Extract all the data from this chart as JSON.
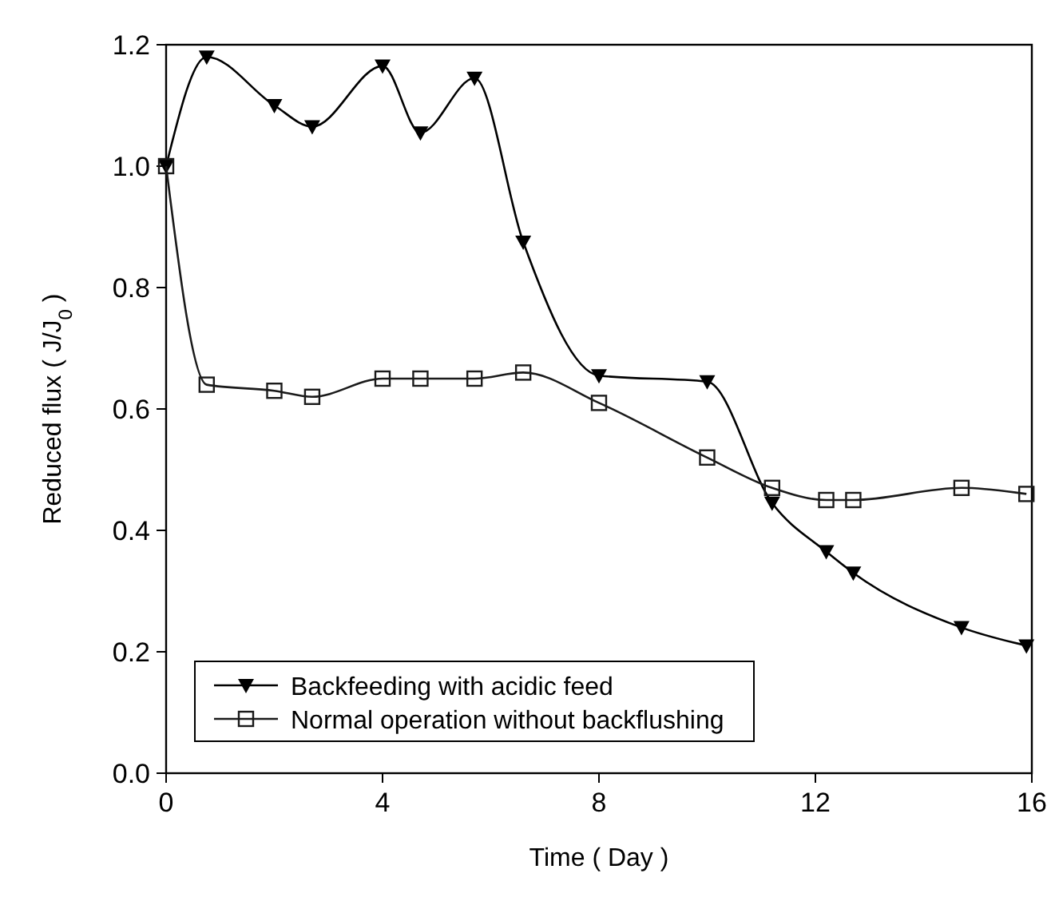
{
  "chart_data": {
    "type": "line",
    "xlabel": "Time ( Day )",
    "ylabel": "Reduced flux ( J/J$_{0}$ )",
    "xlim": [
      0,
      16
    ],
    "xticks": [
      0,
      4,
      8,
      12,
      16
    ],
    "ylim": [
      0,
      1.2
    ],
    "yticks": [
      {
        "value": 0,
        "label": "0.0"
      },
      {
        "value": 0.2,
        "label": "0.2"
      },
      {
        "value": 0.4,
        "label": "0.4"
      },
      {
        "value": 0.6,
        "label": "0.6"
      },
      {
        "value": 0.8,
        "label": "0.8"
      },
      {
        "value": 1,
        "label": "1.0"
      },
      {
        "value": 1.2,
        "label": "1.2"
      }
    ],
    "grid": false,
    "legend": "bottom",
    "line_style": "solid",
    "series": [
      {
        "name": "Backfeeding with acidic feed",
        "color": "#000000",
        "marker": "triangle",
        "x": [
          0,
          0.75,
          2,
          2.7,
          4,
          4.7,
          5.7,
          6.6,
          8,
          10,
          11.2,
          12.2,
          12.7,
          14.7,
          15.9
        ],
        "values": [
          1.0,
          1.18,
          1.1,
          1.065,
          1.165,
          1.055,
          1.145,
          0.875,
          0.655,
          0.645,
          0.445,
          0.365,
          0.33,
          0.24,
          0.21
        ]
      },
      {
        "name": "Normal operation without backflushing",
        "color": "#1a1a1a",
        "marker": "square",
        "x": [
          0,
          0.75,
          2,
          2.7,
          4,
          4.7,
          5.7,
          6.6,
          8,
          10,
          11.2,
          12.2,
          12.7,
          14.7,
          15.9
        ],
        "values": [
          1.0,
          0.64,
          0.63,
          0.62,
          0.65,
          0.65,
          0.65,
          0.66,
          0.61,
          0.52,
          0.47,
          0.45,
          0.45,
          0.47,
          0.46
        ]
      }
    ]
  }
}
